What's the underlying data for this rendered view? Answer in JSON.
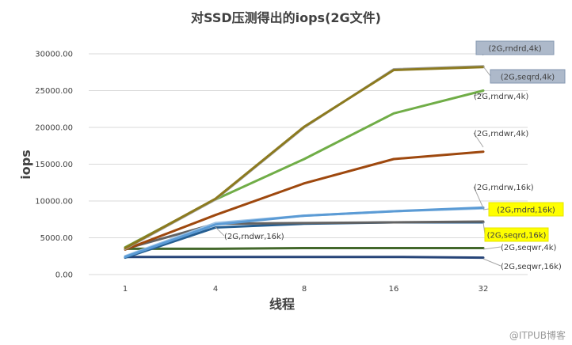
{
  "chart_data": {
    "type": "line",
    "title": "对SSD压测得出的iops(2G文件)",
    "xlabel": "线程",
    "ylabel": "iops",
    "categories": [
      "1",
      "4",
      "8",
      "16",
      "32"
    ],
    "ylim": [
      0,
      30000
    ],
    "yticks": [
      "0.00",
      "5000.00",
      "10000.00",
      "15000.00",
      "20000.00",
      "25000.00",
      "30000.00"
    ],
    "grid": true,
    "legend": "none",
    "series": [
      {
        "name": "(2G,rndrd,4k)",
        "color": "#8c7a1f",
        "values": [
          3600,
          10300,
          20100,
          27800,
          28200
        ],
        "label_style": "box-gray"
      },
      {
        "name": "(2G,seqrd,4k)",
        "color": "#a5a5a5",
        "values": [
          3500,
          10200,
          20000,
          27900,
          28300
        ],
        "label_style": "box-gray"
      },
      {
        "name": "(2G,rndrw,4k)",
        "color": "#70ad47",
        "values": [
          3700,
          10200,
          15700,
          21900,
          25000
        ],
        "label_style": "plain"
      },
      {
        "name": "(2G,rndwr,4k)",
        "color": "#9e480e",
        "values": [
          3400,
          8100,
          12400,
          15700,
          16700
        ],
        "label_style": "plain"
      },
      {
        "name": "(2G,rndrw,16k)",
        "color": "#9dc3e6",
        "values": [
          2500,
          7000,
          8000,
          8600,
          9000
        ],
        "label_style": "plain"
      },
      {
        "name": "(2G,rndrd,16k)",
        "color": "#5b9bd5",
        "values": [
          2400,
          6800,
          8000,
          8600,
          9100
        ],
        "label_style": "box-yellow"
      },
      {
        "name": "(2G,seqrd,16k)",
        "color": "#636363",
        "values": [
          3500,
          6900,
          7000,
          7100,
          7200
        ],
        "label_style": "box-yellow"
      },
      {
        "name": "(2G,rndwr,16k)",
        "color": "#255e91",
        "values": [
          2300,
          6400,
          6900,
          7100,
          7100
        ],
        "label_style": "plain"
      },
      {
        "name": "(2G,seqwr,4k)",
        "color": "#43682b",
        "values": [
          3500,
          3500,
          3600,
          3600,
          3600
        ],
        "label_style": "plain"
      },
      {
        "name": "(2G,seqwr,16k)",
        "color": "#264478",
        "values": [
          2400,
          2400,
          2400,
          2400,
          2300
        ],
        "label_style": "plain"
      }
    ]
  },
  "watermark": "@ITPUB博客"
}
